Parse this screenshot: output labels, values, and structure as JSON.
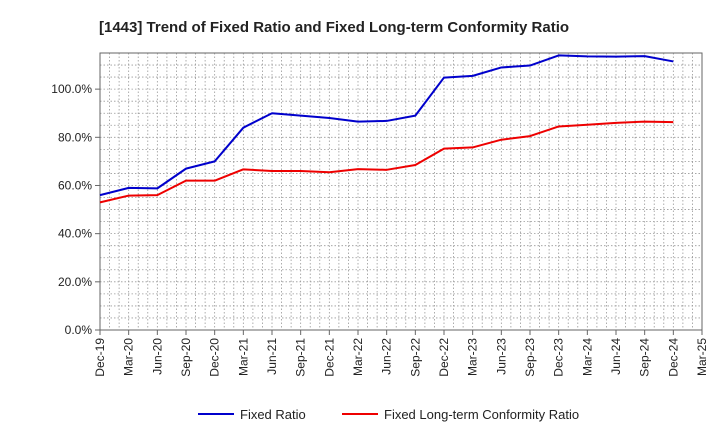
{
  "chart_data": {
    "type": "line",
    "title": "[1443]  Trend of Fixed Ratio and Fixed Long-term Conformity Ratio",
    "xlabel": "",
    "ylabel": "",
    "ylim": [
      0,
      115
    ],
    "y_ticks": [
      "0.0%",
      "20.0%",
      "40.0%",
      "60.0%",
      "80.0%",
      "100.0%"
    ],
    "y_tick_values": [
      0,
      20,
      40,
      60,
      80,
      100
    ],
    "x_tick_labels": [
      "Dec-19",
      "Mar-20",
      "Jun-20",
      "Sep-20",
      "Dec-20",
      "Mar-21",
      "Jun-21",
      "Sep-21",
      "Dec-21",
      "Mar-22",
      "Jun-22",
      "Sep-22",
      "Dec-22",
      "Mar-23",
      "Jun-23",
      "Sep-23",
      "Dec-23",
      "Mar-24",
      "Jun-24",
      "Sep-24",
      "Dec-24",
      "Mar-25"
    ],
    "grid": true,
    "legend_position": "bottom",
    "categories": [
      "Dec-19",
      "Mar-20",
      "Jun-20",
      "Sep-20",
      "Dec-20",
      "Mar-21",
      "Jun-21",
      "Sep-21",
      "Dec-21",
      "Mar-22",
      "Jun-22",
      "Sep-22",
      "Dec-22",
      "Mar-23",
      "Jun-23",
      "Sep-23",
      "Dec-23",
      "Mar-24",
      "Jun-24",
      "Sep-24",
      "Dec-24"
    ],
    "series": [
      {
        "name": "Fixed Ratio",
        "color": "#0000cc",
        "values": [
          56.0,
          59.0,
          58.8,
          67.0,
          70.0,
          84.0,
          90.0,
          89.0,
          88.0,
          86.5,
          86.8,
          89.0,
          104.8,
          105.5,
          109.0,
          109.8,
          114.0,
          113.6,
          113.5,
          113.7,
          111.5
        ]
      },
      {
        "name": "Fixed Long-term Conformity Ratio",
        "color": "#ee0000",
        "values": [
          53.0,
          55.8,
          56.0,
          62.0,
          62.0,
          66.7,
          66.0,
          66.0,
          65.5,
          66.8,
          66.5,
          68.5,
          75.3,
          75.8,
          79.0,
          80.5,
          84.5,
          85.2,
          86.0,
          86.5,
          86.3
        ]
      }
    ]
  }
}
